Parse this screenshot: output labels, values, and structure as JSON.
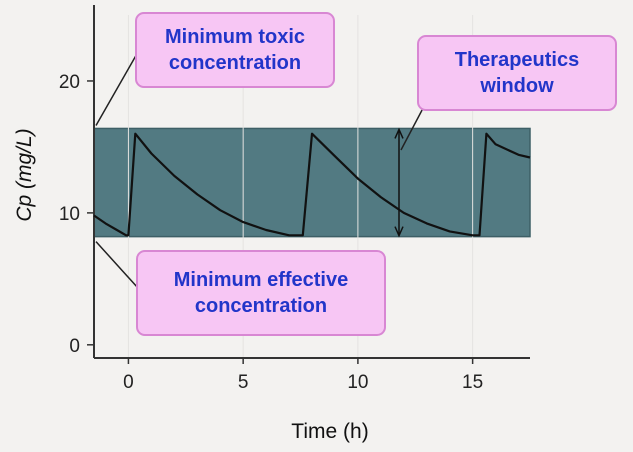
{
  "chart_data": {
    "type": "line",
    "ylabel": "Cp (mg/L)",
    "xlabel": "Time (h)",
    "xlim": [
      -1.5,
      17.5
    ],
    "ylim": [
      -1,
      25
    ],
    "xticks": [
      "0",
      "5",
      "10",
      "15"
    ],
    "yticks": [
      "0",
      "10",
      "20"
    ],
    "therapeutic_window": {
      "lower": 8.2,
      "upper": 16.4
    },
    "series": [
      {
        "x": [
          -1.5,
          -1.0,
          -0.5,
          -0.1,
          0.0,
          0.3,
          1.0,
          2.0,
          3.0,
          4.0,
          5.0,
          6.0,
          7.0,
          7.6,
          8.0,
          9.0,
          10.0,
          11.0,
          12.0,
          13.0,
          14.0,
          15.0,
          15.3,
          15.6,
          16.0,
          17.0,
          17.5
        ],
        "y": [
          9.8,
          9.2,
          8.7,
          8.3,
          8.3,
          16.0,
          14.5,
          12.8,
          11.4,
          10.2,
          9.3,
          8.7,
          8.3,
          8.3,
          16.0,
          14.3,
          12.6,
          11.2,
          10.0,
          9.2,
          8.6,
          8.3,
          8.3,
          16.0,
          15.2,
          14.4,
          14.2
        ]
      }
    ],
    "annotations": {
      "min_toxic": "Minimum toxic concentration",
      "therapeutic_window": "Therapeutics window",
      "min_effective": "Minimum effective concentration"
    }
  },
  "colors": {
    "band": "#527a82",
    "band_edge": "#3d5f66",
    "curve": "#111111",
    "callout_fill": "#f7c6f4",
    "callout_text": "#2235c9"
  }
}
